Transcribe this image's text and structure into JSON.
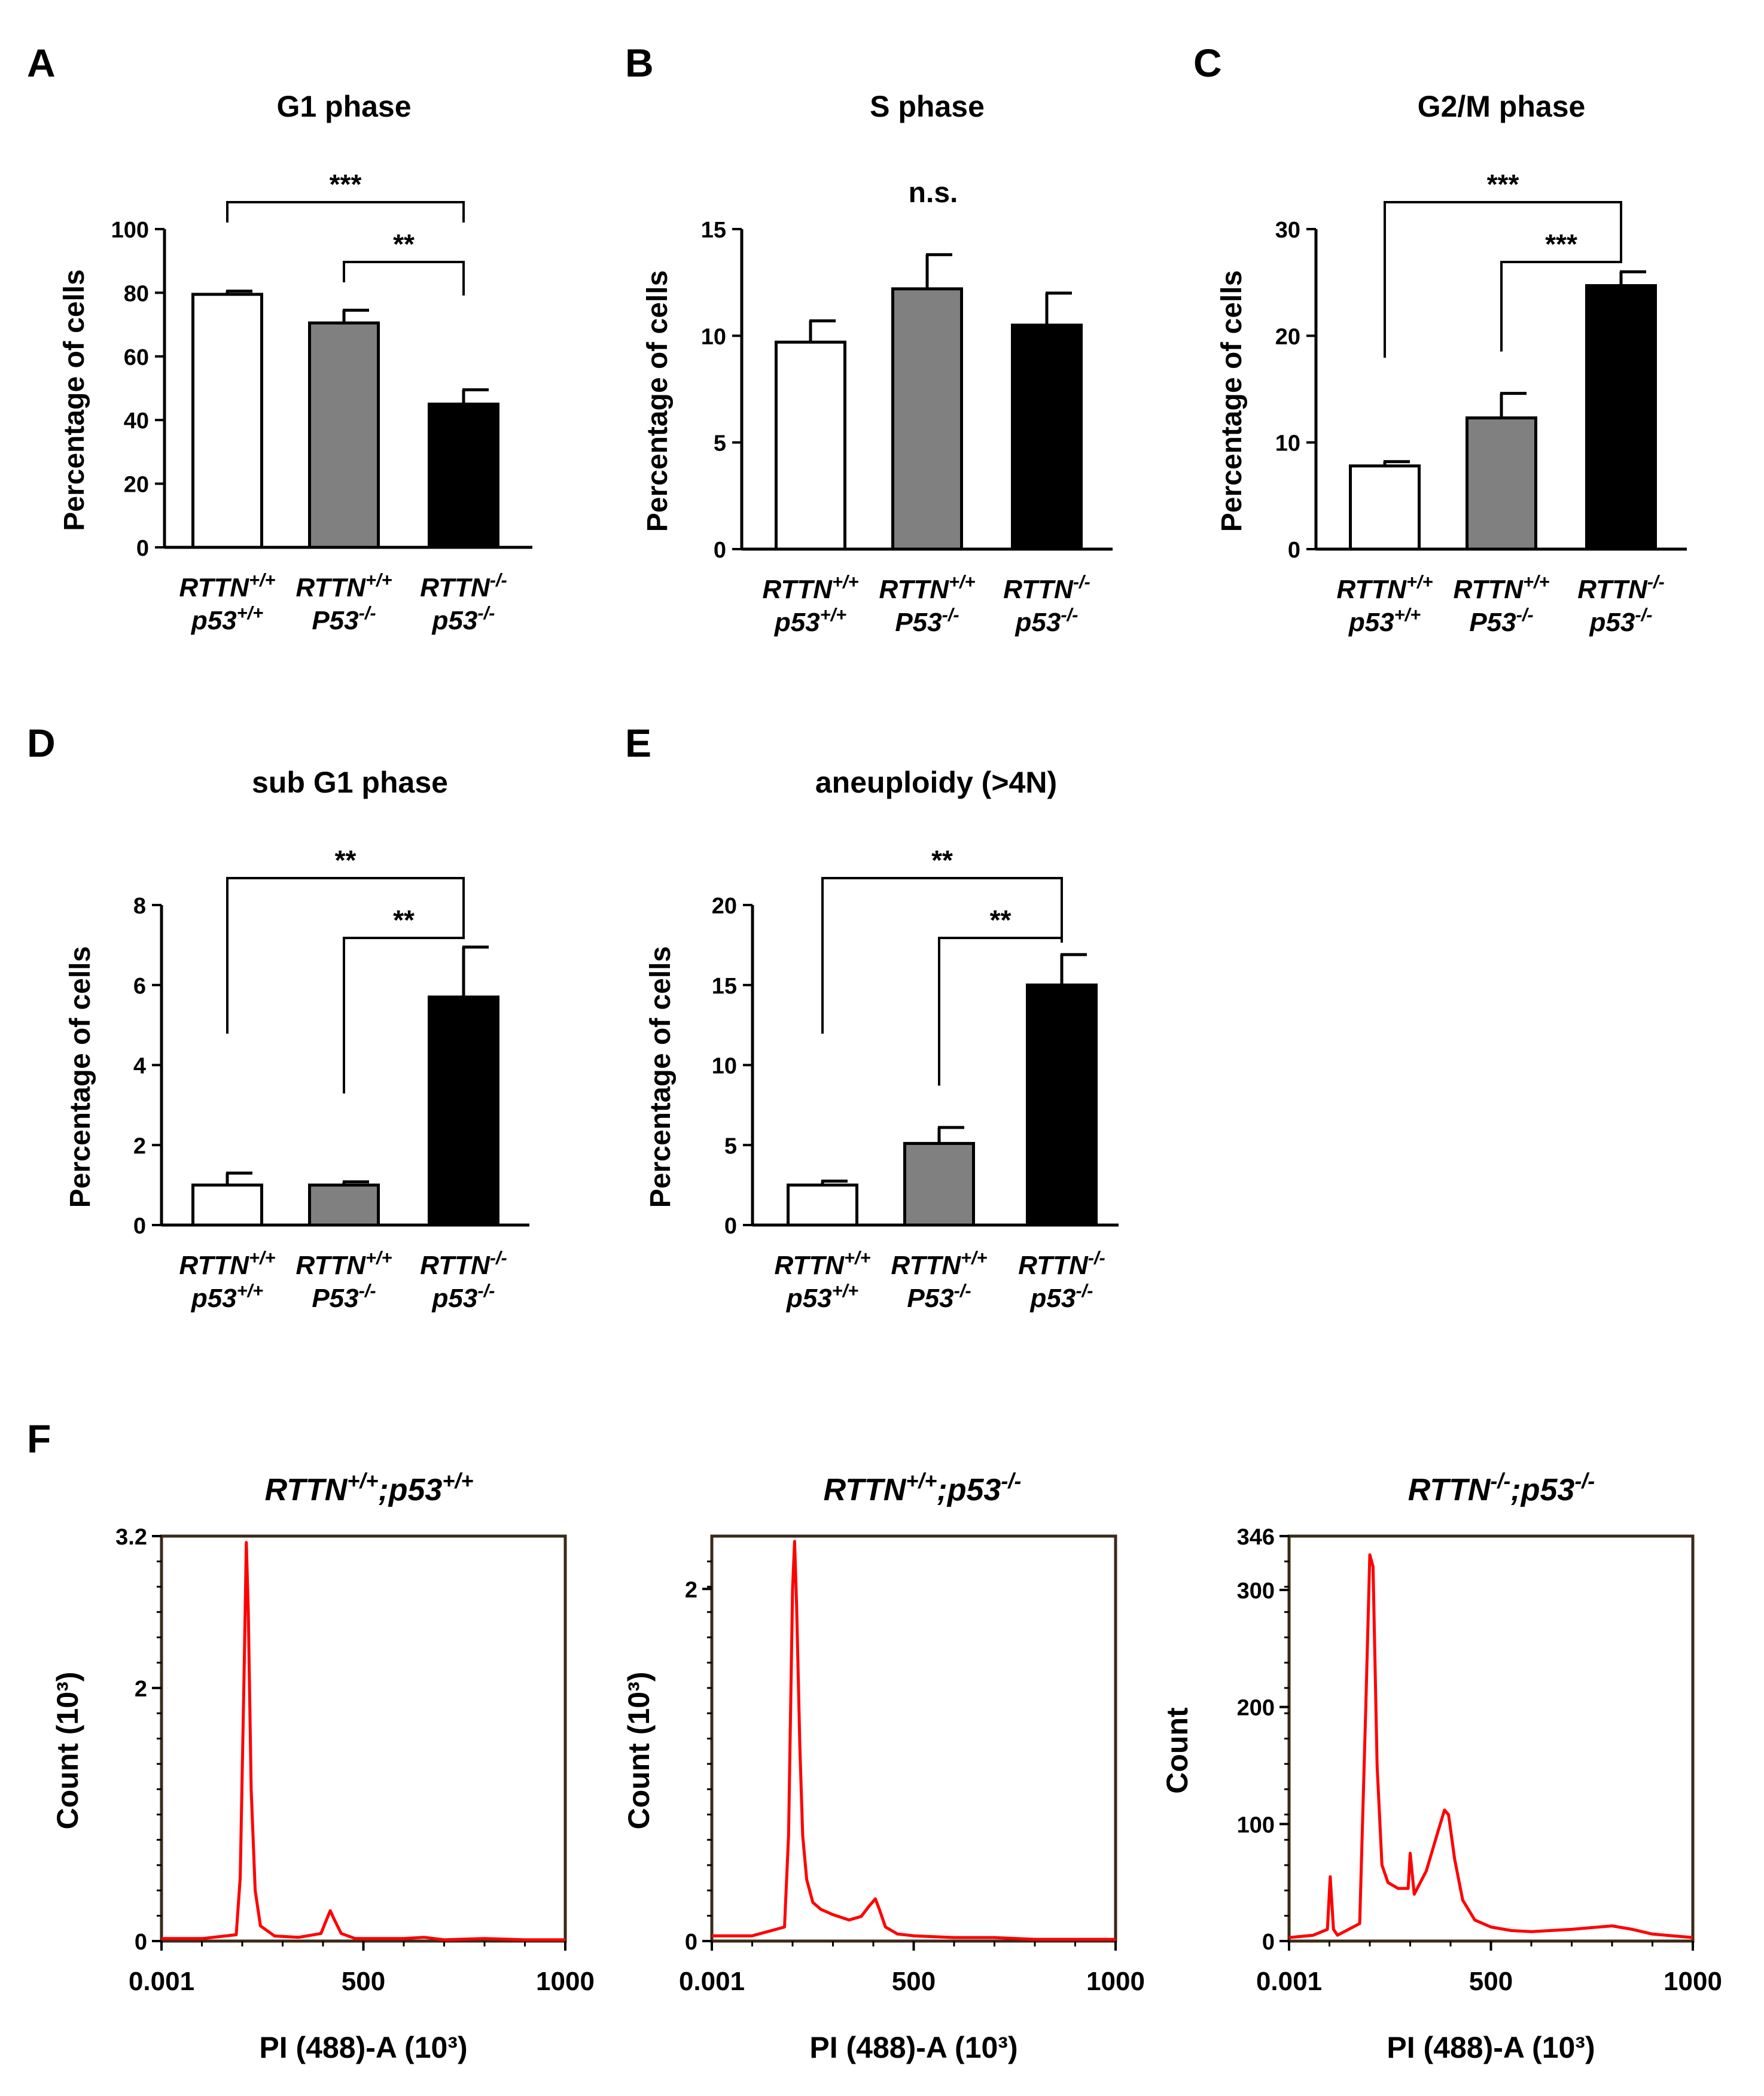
{
  "chart_data": [
    {
      "panel": "A",
      "type": "bar",
      "title": "G1 phase",
      "ylabel": "Percentage of cells",
      "ylim": [
        0,
        100
      ],
      "yticks": [
        0,
        20,
        40,
        60,
        80,
        100
      ],
      "categories": [
        [
          "RTTN+/+",
          "p53+/+"
        ],
        [
          "RTTN+/+",
          "P53-/-"
        ],
        [
          "RTTN-/-",
          "p53-/-"
        ]
      ],
      "values": [
        79.5,
        70.5,
        45
      ],
      "errors": [
        1,
        4,
        4.5
      ],
      "colors": [
        "#ffffff",
        "#808080",
        "#000000"
      ],
      "brackets": [
        {
          "from": 0,
          "to": 2,
          "label": "***",
          "style": "cap",
          "level": 1
        },
        {
          "from": 1,
          "to": 2,
          "label": "**",
          "style": "cap",
          "level": 0
        }
      ]
    },
    {
      "panel": "B",
      "type": "bar",
      "title": "S phase",
      "ylabel": "Percentage of cells",
      "ylim": [
        0,
        15
      ],
      "yticks": [
        0,
        5,
        10,
        15
      ],
      "categories": [
        [
          "RTTN+/+",
          "p53+/+"
        ],
        [
          "RTTN+/+",
          "P53-/-"
        ],
        [
          "RTTN-/-",
          "p53-/-"
        ]
      ],
      "values": [
        9.7,
        12.2,
        10.5
      ],
      "errors": [
        1.0,
        1.6,
        1.5
      ],
      "colors": [
        "#ffffff",
        "#808080",
        "#000000"
      ],
      "annotation": "n.s."
    },
    {
      "panel": "C",
      "type": "bar",
      "title": "G2/M phase",
      "ylabel": "Percentage of cells",
      "ylim": [
        0,
        30
      ],
      "yticks": [
        0,
        10,
        20,
        30
      ],
      "categories": [
        [
          "RTTN+/+",
          "p53+/+"
        ],
        [
          "RTTN+/+",
          "P53-/-"
        ],
        [
          "RTTN-/-",
          "p53-/-"
        ]
      ],
      "values": [
        7.8,
        12.3,
        24.7
      ],
      "errors": [
        0.4,
        2.3,
        1.3
      ],
      "colors": [
        "#ffffff",
        "#808080",
        "#000000"
      ],
      "brackets": [
        {
          "from": 0,
          "to": 2,
          "label": "***",
          "style": "open",
          "level": 1
        },
        {
          "from": 1,
          "to": 2,
          "label": "***",
          "style": "open",
          "level": 0
        }
      ]
    },
    {
      "panel": "D",
      "type": "bar",
      "title": "sub G1 phase",
      "ylabel": "Percentage of cells",
      "ylim": [
        0,
        8
      ],
      "yticks": [
        0,
        2,
        4,
        6,
        8
      ],
      "categories": [
        [
          "RTTN+/+",
          "p53+/+"
        ],
        [
          "RTTN+/+",
          "P53-/-"
        ],
        [
          "RTTN-/-",
          "p53-/-"
        ]
      ],
      "values": [
        1.0,
        1.0,
        5.7
      ],
      "errors": [
        0.3,
        0.08,
        1.25
      ],
      "colors": [
        "#ffffff",
        "#808080",
        "#000000"
      ],
      "brackets": [
        {
          "from": 0,
          "to": 2,
          "label": "**",
          "style": "open",
          "level": 1
        },
        {
          "from": 1,
          "to": 2,
          "label": "**",
          "style": "open",
          "level": 0
        }
      ]
    },
    {
      "panel": "E",
      "type": "bar",
      "title": "aneuploidy (>4N)",
      "ylabel": "Percentage of cells",
      "ylim": [
        0,
        20
      ],
      "yticks": [
        0,
        5,
        10,
        15,
        20
      ],
      "categories": [
        [
          "RTTN+/+",
          "p53+/+"
        ],
        [
          "RTTN+/+",
          "P53-/-"
        ],
        [
          "RTTN-/-",
          "p53-/-"
        ]
      ],
      "values": [
        2.5,
        5.1,
        15.0
      ],
      "errors": [
        0.25,
        1.0,
        1.9
      ],
      "colors": [
        "#ffffff",
        "#808080",
        "#000000"
      ],
      "brackets": [
        {
          "from": 0,
          "to": 2,
          "label": "**",
          "style": "open",
          "level": 1
        },
        {
          "from": 1,
          "to": 2,
          "label": "**",
          "style": "open",
          "level": 0
        }
      ]
    },
    {
      "panel": "F",
      "type": "line",
      "title": "RTTN+/+;p53+/+",
      "xlabel": "PI (488)-A (10³)",
      "ylabel": "Count (10³)",
      "xlim": [
        0,
        1000
      ],
      "ylim": [
        0,
        3.2
      ],
      "xticks": [
        "0.001",
        "500",
        "1000"
      ],
      "yticks": [
        "0",
        "2",
        "3.2"
      ],
      "series": [
        {
          "name": "PI histogram",
          "color": "#ff0000",
          "x": [
            0,
            100,
            185,
            195,
            205,
            210,
            215,
            222,
            232,
            245,
            280,
            340,
            395,
            410,
            418,
            428,
            445,
            480,
            600,
            650,
            700,
            800,
            900,
            1000
          ],
          "y": [
            0.02,
            0.02,
            0.05,
            0.5,
            2.2,
            3.15,
            2.6,
            1.2,
            0.4,
            0.12,
            0.04,
            0.03,
            0.06,
            0.18,
            0.24,
            0.17,
            0.06,
            0.02,
            0.02,
            0.03,
            0.01,
            0.02,
            0.01,
            0.01
          ]
        }
      ]
    },
    {
      "panel": "F",
      "type": "line",
      "title": "RTTN+/+;p53-/-",
      "xlabel": "PI (488)-A (10³)",
      "ylabel": "Count (10³)",
      "xlim": [
        0,
        1000
      ],
      "ylim": [
        0,
        2.3
      ],
      "xticks": [
        "0.001",
        "500",
        "1000"
      ],
      "yticks": [
        "0",
        "2"
      ],
      "series": [
        {
          "name": "PI histogram",
          "color": "#ff0000",
          "x": [
            0,
            100,
            180,
            190,
            200,
            205,
            210,
            218,
            225,
            235,
            250,
            270,
            300,
            340,
            370,
            390,
            405,
            415,
            430,
            460,
            500,
            600,
            700,
            800,
            900,
            1000
          ],
          "y": [
            0.03,
            0.03,
            0.08,
            0.6,
            2.0,
            2.27,
            1.9,
            1.1,
            0.6,
            0.35,
            0.22,
            0.18,
            0.15,
            0.12,
            0.14,
            0.2,
            0.24,
            0.18,
            0.08,
            0.04,
            0.03,
            0.02,
            0.02,
            0.01,
            0.01,
            0.01
          ]
        }
      ]
    },
    {
      "panel": "F",
      "type": "line",
      "title": "RTTN-/-;p53-/-",
      "xlabel": "PI (488)-A (10³)",
      "ylabel": "Count",
      "xlim": [
        0,
        1000
      ],
      "ylim": [
        0,
        346
      ],
      "xticks": [
        "0.001",
        "500",
        "1000"
      ],
      "yticks": [
        "0",
        "100",
        "200",
        "300",
        "346"
      ],
      "series": [
        {
          "name": "PI histogram",
          "color": "#ff0000",
          "x": [
            0,
            60,
            95,
            102,
            110,
            120,
            175,
            190,
            200,
            208,
            218,
            230,
            245,
            270,
            295,
            300,
            310,
            340,
            370,
            385,
            395,
            410,
            430,
            460,
            500,
            550,
            600,
            700,
            800,
            850,
            900,
            1000
          ],
          "y": [
            3,
            5,
            10,
            55,
            10,
            5,
            15,
            200,
            330,
            320,
            150,
            65,
            50,
            45,
            45,
            75,
            40,
            60,
            95,
            112,
            108,
            70,
            35,
            18,
            12,
            9,
            8,
            10,
            13,
            10,
            6,
            3
          ]
        }
      ]
    }
  ],
  "labels": {
    "panels": [
      "A",
      "B",
      "C",
      "D",
      "E",
      "F"
    ]
  }
}
